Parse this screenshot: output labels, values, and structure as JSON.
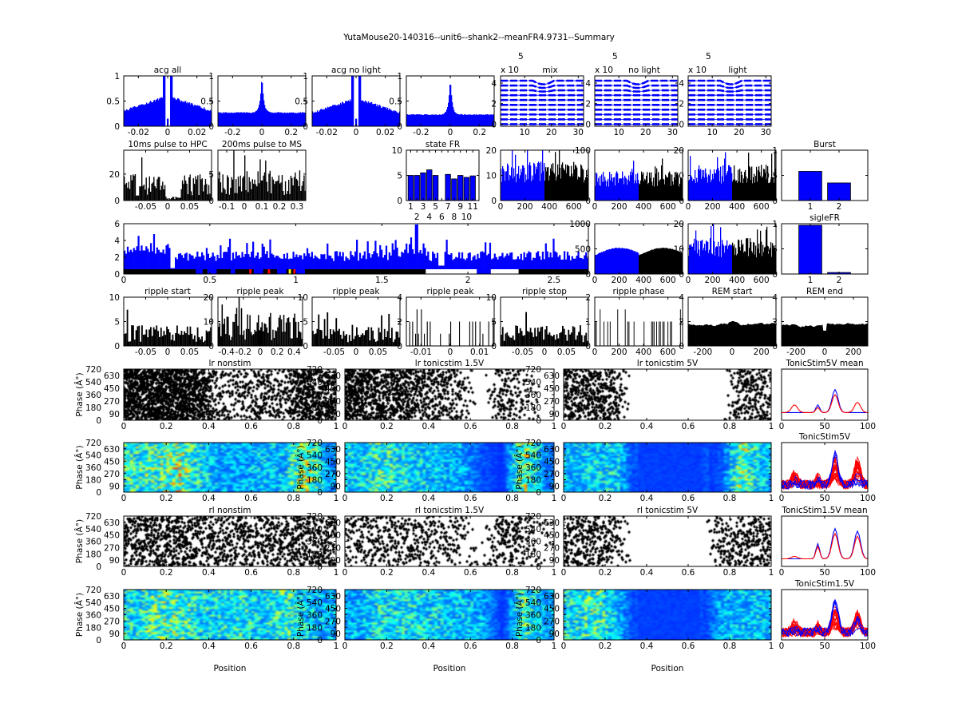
{
  "figure_title": "YutaMouse20-140316--unit6--shank2--meanFR4.9731--Summary",
  "colors": {
    "blue": "#0000ff",
    "black": "#000000",
    "red": "#ff0000"
  },
  "chart_data": [
    {
      "id": "acg_all",
      "type": "bar",
      "shape": "gap",
      "title": "acg all",
      "xlim": [
        -0.03,
        0.03
      ],
      "ylim": [
        0,
        1
      ],
      "xticks": [
        "-0.02",
        "0",
        "0.02"
      ],
      "yticks": [
        "0",
        "0.5",
        "1"
      ],
      "base": 0.3,
      "near": 0.6
    },
    {
      "id": "acg_light_wide",
      "type": "bar",
      "shape": "peak",
      "title": "",
      "xlim": [
        -0.3,
        0.3
      ],
      "ylim": [
        0,
        1
      ],
      "xticks": [
        "-0.2",
        "0",
        "0.2"
      ],
      "yticks": [
        "0",
        "0.5",
        "1"
      ],
      "base": 0.27
    },
    {
      "id": "acg_no_light",
      "type": "bar",
      "shape": "gap",
      "title": "acg no light",
      "xlim": [
        -0.03,
        0.03
      ],
      "ylim": [
        0,
        1
      ],
      "xticks": [
        "-0.02",
        "0",
        "0.02"
      ],
      "yticks": [
        "0",
        "0.5",
        "1"
      ],
      "base": 0.27,
      "near": 0.55
    },
    {
      "id": "acg_no_light_wide",
      "type": "bar",
      "shape": "peak",
      "title": "",
      "xlim": [
        -0.3,
        0.3
      ],
      "ylim": [
        0,
        1
      ],
      "xticks": [
        "-0.2",
        "0",
        "0.2"
      ],
      "yticks": [
        "0",
        "0.5",
        "1"
      ],
      "base": 0.23
    },
    {
      "id": "wave_mix",
      "type": "line",
      "shape": "wave",
      "title": "mix",
      "exponent": "x 10",
      "exponent_power": "5",
      "xlim": [
        1,
        32
      ],
      "ylim": [
        -0.2,
        4.7
      ],
      "xticks": [
        "10",
        "20",
        "30"
      ],
      "yticks": [
        "0",
        "2",
        "4"
      ]
    },
    {
      "id": "wave_no_light",
      "type": "line",
      "shape": "wave",
      "title": "no light",
      "exponent": "x 10",
      "exponent_power": "5",
      "xlim": [
        1,
        32
      ],
      "ylim": [
        -0.2,
        4.7
      ],
      "xticks": [
        "10",
        "20",
        "30"
      ],
      "yticks": [
        "0",
        "2",
        "4"
      ]
    },
    {
      "id": "wave_light",
      "type": "line",
      "shape": "wave",
      "title": "light",
      "exponent": "x 10",
      "exponent_power": "5",
      "xlim": [
        1,
        32
      ],
      "ylim": [
        -0.2,
        4.7
      ],
      "xticks": [
        "10",
        "20",
        "30"
      ],
      "yticks": [
        "0",
        "2",
        "4"
      ]
    },
    {
      "id": "pulse_hpc",
      "type": "bar",
      "shape": "hist",
      "title": "10ms pulse to HPC",
      "xlim": [
        -0.1,
        0.1
      ],
      "ylim": [
        0,
        38
      ],
      "xticks": [
        "-0.05",
        "0",
        "0.05"
      ],
      "yticks": [
        "0",
        "20"
      ],
      "mean": 12,
      "dip": [
        -0.005,
        0.03
      ],
      "bins": 80
    },
    {
      "id": "pulse_ms",
      "type": "bar",
      "shape": "hist",
      "title": "200ms pulse to MS",
      "xlim": [
        -0.15,
        0.35
      ],
      "ylim": [
        0,
        9.5
      ],
      "xticks": [
        "-0.1",
        "0",
        "0.1",
        "0.2",
        "0.3"
      ],
      "yticks": [
        "0",
        "5"
      ],
      "mean": 3.5,
      "bins": 80
    },
    {
      "id": "state_fr",
      "type": "bar",
      "shape": "bars",
      "title": "state FR",
      "xlim": [
        0.3,
        12
      ],
      "ylim": [
        0,
        10
      ],
      "xticks": [
        "1",
        "2",
        "3",
        "4",
        "5",
        "6",
        "7",
        "8",
        "9",
        "10",
        "11"
      ],
      "yticks": [
        "0",
        "5",
        "10"
      ],
      "values": [
        5,
        5,
        5.5,
        6.1,
        5,
        0,
        5.2,
        4.3,
        5,
        4.6,
        4.9
      ]
    },
    {
      "id": "fr_mix",
      "type": "bar",
      "shape": "split",
      "title": "",
      "xlim": [
        0,
        720
      ],
      "ylim": [
        0,
        20
      ],
      "xticks": [
        "0",
        "200",
        "400",
        "600"
      ],
      "yticks": [
        "0",
        "10",
        "20"
      ],
      "mean": 12
    },
    {
      "id": "fr_no_light",
      "type": "bar",
      "shape": "split",
      "title": "",
      "xlim": [
        0,
        720
      ],
      "ylim": [
        0,
        100
      ],
      "xticks": [
        "0",
        "200",
        "400",
        "600"
      ],
      "yticks": [
        "0",
        "100"
      ],
      "mean": 45
    },
    {
      "id": "fr_light",
      "type": "bar",
      "shape": "split",
      "title": "",
      "xlim": [
        0,
        720
      ],
      "ylim": [
        0,
        20
      ],
      "xticks": [
        "0",
        "200",
        "400",
        "600"
      ],
      "yticks": [
        "0",
        "10",
        "20"
      ],
      "mean": 11
    },
    {
      "id": "burst",
      "type": "bar",
      "shape": "bars",
      "title": "Burst",
      "xlim": [
        0,
        3
      ],
      "ylim": [
        0,
        1
      ],
      "xticks": [
        "1",
        "2"
      ],
      "yticks": [
        "0",
        "0.5",
        "1"
      ],
      "values": [
        0.58,
        0.35
      ]
    },
    {
      "id": "fr_time",
      "type": "bar",
      "shape": "long",
      "title": "",
      "xlim": [
        0,
        2.7
      ],
      "ylim": [
        0,
        6
      ],
      "xticks": [
        "0",
        "0.5",
        "1",
        "1.5",
        "2",
        "2.5"
      ],
      "yticks": [
        "0",
        "2",
        "4",
        "6"
      ]
    },
    {
      "id": "fr_smooth",
      "type": "bar",
      "shape": "smooth",
      "title": "",
      "xlim": [
        0,
        720
      ],
      "ylim": [
        0,
        1000
      ],
      "xticks": [
        "0",
        "200",
        "400",
        "600"
      ],
      "yticks": [
        "0",
        "500",
        "1000"
      ]
    },
    {
      "id": "fr_light2",
      "type": "bar",
      "shape": "split",
      "title": "",
      "xlim": [
        0,
        720
      ],
      "ylim": [
        0,
        20
      ],
      "xticks": [
        "0",
        "200",
        "400",
        "600"
      ],
      "yticks": [
        "0",
        "10",
        "20"
      ],
      "mean": 11
    },
    {
      "id": "sigle_fr",
      "type": "bar",
      "shape": "bars",
      "title": "sigleFR",
      "xlim": [
        0,
        3
      ],
      "ylim": [
        0,
        1
      ],
      "xticks": [
        "1",
        "2"
      ],
      "yticks": [
        "0",
        "0.5",
        "1"
      ],
      "values": [
        0.97,
        0.03
      ]
    },
    {
      "id": "ripple_start",
      "type": "bar",
      "shape": "hist",
      "title": "ripple start",
      "xlim": [
        -0.1,
        0.1
      ],
      "ylim": [
        0,
        10
      ],
      "xticks": [
        "-0.05",
        "0",
        "0.05"
      ],
      "yticks": [
        "0",
        "5",
        "10"
      ],
      "mean": 2.5,
      "bins": 60
    },
    {
      "id": "ripple_peak_1",
      "type": "bar",
      "shape": "hist",
      "title": "ripple peak",
      "xlim": [
        -0.5,
        0.5
      ],
      "ylim": [
        0,
        20
      ],
      "xticks": [
        "-0.4",
        "-0.2",
        "0",
        "0.2",
        "0.4"
      ],
      "yticks": [
        "0",
        "10",
        "20"
      ],
      "mean": 8,
      "bins": 70
    },
    {
      "id": "ripple_peak_2",
      "type": "bar",
      "shape": "hist",
      "title": "ripple peak",
      "xlim": [
        -0.1,
        0.1
      ],
      "ylim": [
        0,
        10
      ],
      "xticks": [
        "-0.05",
        "0",
        "0.05"
      ],
      "yticks": [
        "0",
        "5",
        "10"
      ],
      "mean": 2.3,
      "bins": 60
    },
    {
      "id": "ripple_peak_3",
      "type": "bar",
      "shape": "sparse",
      "title": "ripple peak",
      "xlim": [
        -0.015,
        0.015
      ],
      "ylim": [
        0,
        4
      ],
      "xticks": [
        "-0.01",
        "0",
        "0.01"
      ],
      "yticks": [
        "0",
        "2",
        "4"
      ],
      "bins": 60
    },
    {
      "id": "ripple_stop",
      "type": "bar",
      "shape": "hist",
      "title": "ripple stop",
      "xlim": [
        -0.1,
        0.1
      ],
      "ylim": [
        0,
        10
      ],
      "xticks": [
        "-0.05",
        "0",
        "0.05"
      ],
      "yticks": [
        "0",
        "5",
        "10"
      ],
      "mean": 2.5,
      "bins": 60
    },
    {
      "id": "ripple_phase",
      "type": "bar",
      "shape": "sparse",
      "title": "ripple phase",
      "xlim": [
        0,
        720
      ],
      "ylim": [
        0,
        2
      ],
      "xticks": [
        "0",
        "200",
        "400",
        "600"
      ],
      "yticks": [
        "0",
        "1",
        "2"
      ],
      "bins": 70
    },
    {
      "id": "rem_start",
      "type": "area",
      "shape": "area",
      "title": "REM start",
      "xlim": [
        -300,
        300
      ],
      "ylim": [
        0,
        4
      ],
      "xticks": [
        "-200",
        "0",
        "200"
      ],
      "yticks": [
        "0",
        "2",
        "4"
      ],
      "mean": 1.75
    },
    {
      "id": "rem_end",
      "type": "area",
      "shape": "area",
      "title": "REM end",
      "xlim": [
        -300,
        300
      ],
      "ylim": [
        0,
        4
      ],
      "xticks": [
        "-200",
        "0",
        "200"
      ],
      "yticks": [
        "0",
        "2",
        "4"
      ],
      "mean": 1.7
    },
    {
      "id": "lr_nonstim_raster",
      "type": "scatter",
      "shape": "raster",
      "title": "lr nonstim",
      "ylabel": "Phase (Â°)",
      "xlim": [
        0,
        1
      ],
      "ylim": [
        0,
        720
      ],
      "xticks": [
        "0",
        "0.2",
        "0.4",
        "0.6",
        "0.8",
        "1"
      ],
      "yticks": [
        "0",
        "90",
        "180",
        "270",
        "360",
        "450",
        "540",
        "630",
        "720"
      ],
      "rate_profile": [
        1,
        1,
        1,
        1,
        0.5,
        0.5,
        0.6,
        0.5,
        0.9,
        0.8
      ]
    },
    {
      "id": "lr_tonic15_raster",
      "type": "scatter",
      "shape": "raster",
      "title": "lr tonicstim 1.5V",
      "xlim": [
        0,
        1
      ],
      "ylim": [
        0,
        720
      ],
      "xticks": [
        "0",
        "0.2",
        "0.4",
        "0.6",
        "0.8",
        "1"
      ],
      "yticks": [
        "0",
        "90",
        "180",
        "270",
        "360",
        "450",
        "540",
        "630",
        "720"
      ],
      "rate_profile": [
        0.9,
        0.8,
        0.75,
        0.7,
        0.6,
        0.5,
        0.08,
        0.55,
        0.45,
        0.1
      ]
    },
    {
      "id": "lr_tonic5_raster",
      "type": "scatter",
      "shape": "raster",
      "title": "lr tonicstim 5V",
      "xlim": [
        0,
        1
      ],
      "ylim": [
        0,
        720
      ],
      "xticks": [
        "0",
        "0.2",
        "0.4",
        "0.6",
        "0.8",
        "1"
      ],
      "yticks": [
        "0",
        "90",
        "180",
        "270",
        "360",
        "450",
        "540",
        "630",
        "720"
      ],
      "rate_profile": [
        0.7,
        0.7,
        0.6,
        0.02,
        0.02,
        0.02,
        0.02,
        0.03,
        0.6,
        0.6
      ]
    },
    {
      "id": "tonic5_mean",
      "type": "line",
      "shape": "mean",
      "title": "TonicStim5V mean",
      "xlim": [
        0,
        100
      ],
      "ylim": [
        0,
        1
      ],
      "xticks": [
        "0",
        "50",
        "100"
      ],
      "yticks": []
    },
    {
      "id": "lr_nonstim_heat",
      "type": "heatmap",
      "shape": "heat",
      "ylabel": "Phase (Â°)",
      "title": "",
      "xlim": [
        0,
        1
      ],
      "ylim": [
        0,
        720
      ],
      "xticks": [
        "0",
        "0.2",
        "0.4",
        "0.6",
        "0.8",
        "1"
      ],
      "yticks": [
        "0",
        "90",
        "180",
        "270",
        "360",
        "450",
        "540",
        "630",
        "720"
      ],
      "rate_profile": [
        0.55,
        0.6,
        0.75,
        0.45,
        0.3,
        0.3,
        0.35,
        0.35,
        0.85,
        0.25
      ]
    },
    {
      "id": "lr_tonic15_heat",
      "type": "heatmap",
      "shape": "heat",
      "ylabel": "Phase (Â°)",
      "title": "",
      "xlim": [
        0,
        1
      ],
      "ylim": [
        0,
        720
      ],
      "xticks": [
        "0",
        "0.2",
        "0.4",
        "0.6",
        "0.8",
        "1"
      ],
      "yticks": [
        "0",
        "90",
        "180",
        "270",
        "360",
        "450",
        "540",
        "630",
        "720"
      ],
      "rate_profile": [
        0.4,
        0.55,
        0.45,
        0.4,
        0.35,
        0.3,
        0.12,
        0.05,
        0.75,
        0.2
      ]
    },
    {
      "id": "lr_tonic5_heat",
      "type": "heatmap",
      "shape": "heat",
      "ylabel": "Phase (Â°)",
      "title": "",
      "xlim": [
        0,
        1
      ],
      "ylim": [
        0,
        720
      ],
      "xticks": [
        "0",
        "0.2",
        "0.4",
        "0.6",
        "0.8",
        "1"
      ],
      "yticks": [
        "0",
        "90",
        "180",
        "270",
        "360",
        "450",
        "540",
        "630",
        "720"
      ],
      "rate_profile": [
        0.35,
        0.4,
        0.4,
        0.02,
        0.02,
        0.02,
        0.02,
        0.1,
        0.7,
        0.35
      ]
    },
    {
      "id": "tonic5_all",
      "type": "line",
      "shape": "many",
      "title": "TonicStim5V",
      "xlim": [
        0,
        100
      ],
      "ylim": [
        0,
        1
      ],
      "xticks": [
        "0",
        "50",
        "100"
      ],
      "yticks": []
    },
    {
      "id": "rl_nonstim_raster",
      "type": "scatter",
      "shape": "raster",
      "title": "rl nonstim",
      "ylabel": "Phase (Â°)",
      "xlim": [
        0,
        1
      ],
      "ylim": [
        0,
        720
      ],
      "xticks": [
        "0",
        "0.2",
        "0.4",
        "0.6",
        "0.8",
        "1"
      ],
      "yticks": [
        "0",
        "90",
        "180",
        "270",
        "360",
        "450",
        "540",
        "630",
        "720"
      ],
      "rate_profile": [
        0.6,
        0.65,
        0.7,
        0.6,
        0.55,
        0.6,
        0.55,
        0.6,
        0.65,
        0.6
      ]
    },
    {
      "id": "rl_tonic15_raster",
      "type": "scatter",
      "shape": "raster",
      "title": "rl tonicstim 1.5V",
      "xlim": [
        0,
        1
      ],
      "ylim": [
        0,
        720
      ],
      "xticks": [
        "0",
        "0.2",
        "0.4",
        "0.6",
        "0.8",
        "1"
      ],
      "yticks": [
        "0",
        "90",
        "180",
        "270",
        "360",
        "450",
        "540",
        "630",
        "720"
      ],
      "rate_profile": [
        0.45,
        0.5,
        0.5,
        0.5,
        0.45,
        0.4,
        0.15,
        0.6,
        0.5,
        0.2
      ]
    },
    {
      "id": "rl_tonic5_raster",
      "type": "scatter",
      "shape": "raster",
      "title": "rl tonicstim 5V",
      "xlim": [
        0,
        1
      ],
      "ylim": [
        0,
        720
      ],
      "xticks": [
        "0",
        "0.2",
        "0.4",
        "0.6",
        "0.8",
        "1"
      ],
      "yticks": [
        "0",
        "90",
        "180",
        "270",
        "360",
        "450",
        "540",
        "630",
        "720"
      ],
      "rate_profile": [
        0.6,
        0.6,
        0.5,
        0.05,
        0.01,
        0.01,
        0.01,
        0.5,
        0.55,
        0.6
      ]
    },
    {
      "id": "tonic15_mean",
      "type": "line",
      "shape": "mean",
      "title": "TonicStim1.5V mean",
      "xlim": [
        0,
        100
      ],
      "ylim": [
        0,
        1
      ],
      "xticks": [
        "0",
        "50",
        "100"
      ],
      "yticks": []
    },
    {
      "id": "rl_nonstim_heat",
      "type": "heatmap",
      "shape": "heat",
      "ylabel": "Phase (Â°)",
      "title": "",
      "xlabel": "Position",
      "xlim": [
        0,
        1
      ],
      "ylim": [
        0,
        720
      ],
      "xticks": [
        "0",
        "0.2",
        "0.4",
        "0.6",
        "0.8",
        "1"
      ],
      "yticks": [
        "0",
        "90",
        "180",
        "270",
        "360",
        "450",
        "540",
        "630",
        "720"
      ],
      "rate_profile": [
        0.45,
        0.6,
        0.6,
        0.45,
        0.45,
        0.5,
        0.4,
        0.55,
        0.4,
        0.3
      ]
    },
    {
      "id": "rl_tonic15_heat",
      "type": "heatmap",
      "shape": "heat",
      "ylabel": "Phase (Â°)",
      "title": "",
      "xlabel": "Position",
      "xlim": [
        0,
        1
      ],
      "ylim": [
        0,
        720
      ],
      "xticks": [
        "0",
        "0.2",
        "0.4",
        "0.6",
        "0.8",
        "1"
      ],
      "yticks": [
        "0",
        "90",
        "180",
        "270",
        "360",
        "450",
        "540",
        "630",
        "720"
      ],
      "rate_profile": [
        0.3,
        0.45,
        0.45,
        0.45,
        0.4,
        0.35,
        0.3,
        0.05,
        0.6,
        0.3
      ]
    },
    {
      "id": "rl_tonic5_heat",
      "type": "heatmap",
      "shape": "heat",
      "ylabel": "Phase (Â°)",
      "title": "",
      "xlabel": "Position",
      "xlim": [
        0,
        1
      ],
      "ylim": [
        0,
        720
      ],
      "xticks": [
        "0",
        "0.2",
        "0.4",
        "0.6",
        "0.8",
        "1"
      ],
      "yticks": [
        "0",
        "90",
        "180",
        "270",
        "360",
        "450",
        "540",
        "630",
        "720"
      ],
      "rate_profile": [
        0.45,
        0.6,
        0.35,
        0.02,
        0.02,
        0.02,
        0.02,
        0.3,
        0.35,
        0.35
      ]
    },
    {
      "id": "tonic15_all",
      "type": "line",
      "shape": "many",
      "title": "TonicStim1.5V",
      "xlim": [
        0,
        100
      ],
      "ylim": [
        0,
        1
      ],
      "xticks": [
        "0",
        "50",
        "100"
      ],
      "yticks": []
    }
  ]
}
